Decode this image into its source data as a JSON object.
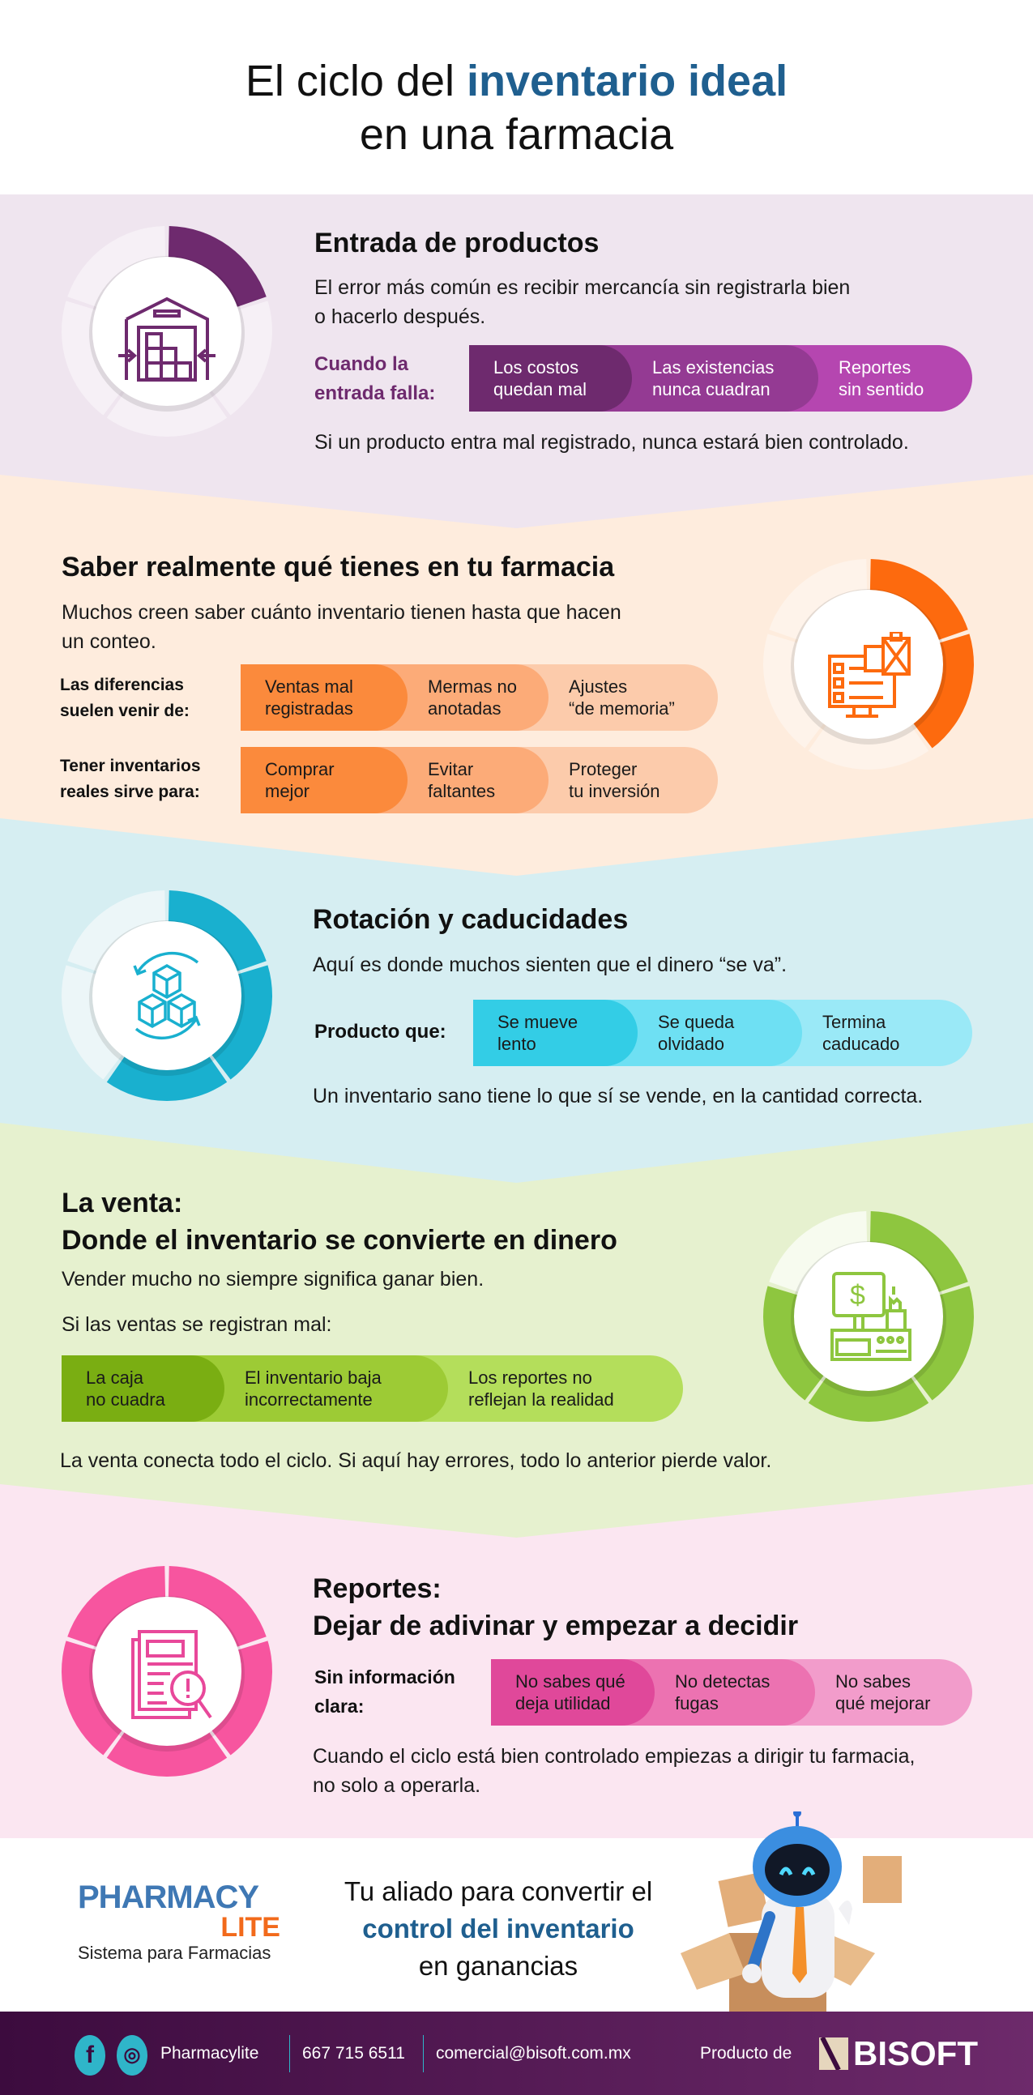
{
  "title": {
    "line1_pre": "El ciclo del ",
    "line1_highlight": "inventario ideal",
    "line2": "en una farmacia"
  },
  "sections": [
    {
      "heading": "Entrada de productos",
      "description": [
        "El error más común es recibir mercancía sin registrarla bien",
        "o hacerlo después."
      ],
      "row_label": [
        "Cuando la",
        "entrada falla:"
      ],
      "pill": [
        [
          "Los costos",
          "quedan mal"
        ],
        [
          "Las existencias",
          "nunca cuadran"
        ],
        [
          "Reportes",
          "sin sentido"
        ]
      ],
      "footer": "Si un producto entra mal registrado, nunca estará bien controlado.",
      "icon": "warehouse-icon",
      "ring": {
        "filled": 1,
        "total": 5,
        "color": "#6e2a6e",
        "light": "#f6f0f6"
      },
      "colors": {
        "bg": "#efe5ef",
        "seg": [
          "#6e2a6e",
          "#943a93",
          "#b546b0"
        ],
        "label": "#6e2a6e"
      }
    },
    {
      "heading": "Saber realmente qué tienes en tu farmacia",
      "description": [
        "Muchos creen saber cuánto inventario tienen hasta que hacen",
        "un conteo."
      ],
      "row_label": [
        "Las diferencias",
        "suelen venir de:"
      ],
      "pill": [
        [
          "Ventas mal",
          "registradas"
        ],
        [
          "Mermas no",
          "anotadas"
        ],
        [
          "Ajustes",
          "“de memoria”"
        ]
      ],
      "row2_label": [
        "Tener inventarios",
        "reales sirve para:"
      ],
      "pill2": [
        [
          "Comprar",
          "mejor"
        ],
        [
          "Evitar",
          "faltantes"
        ],
        [
          "Proteger",
          "tu inversión"
        ]
      ],
      "icon": "inventory-checklist-icon",
      "ring": {
        "filled": 2,
        "total": 5,
        "color": "#fd6a0e",
        "light": "#fef3ea"
      },
      "colors": {
        "bg": "#feecdd",
        "seg": [
          "#fb8a3c",
          "#fcab78",
          "#fccbab"
        ]
      }
    },
    {
      "heading": "Rotación y caducidades",
      "description": [
        "Aquí es donde muchos sienten que el dinero “se va”."
      ],
      "row_label": [
        "Producto que:"
      ],
      "pill": [
        [
          "Se mueve",
          "lento"
        ],
        [
          "Se queda",
          "olvidado"
        ],
        [
          "Termina",
          "caducado"
        ]
      ],
      "footer": "Un inventario sano tiene lo que sí se vende, en la cantidad correcta.",
      "icon": "boxes-rotation-icon",
      "ring": {
        "filled": 3,
        "total": 5,
        "color": "#19b0cf",
        "light": "#ecf6f8"
      },
      "colors": {
        "bg": "#d6eef2",
        "seg": [
          "#33cde6",
          "#6ee0f3",
          "#9ae9f7"
        ]
      }
    },
    {
      "heading": [
        "La venta:",
        "Donde el inventario se convierte en dinero"
      ],
      "description": [
        "Vender mucho no siempre significa ganar bien."
      ],
      "row_label": [
        "Si las ventas se registran mal:"
      ],
      "pill": [
        [
          "La caja",
          "no cuadra"
        ],
        [
          "El inventario baja",
          "incorrectamente"
        ],
        [
          "Los reportes no",
          "reflejan la realidad"
        ]
      ],
      "footer": "La venta conecta todo el ciclo. Si aquí hay errores, todo lo anterior pierde valor.",
      "icon": "cash-register-icon",
      "ring": {
        "filled": 4,
        "total": 5,
        "color": "#8ec63f",
        "light": "#f7fbef"
      },
      "colors": {
        "bg": "#e6f1cf",
        "seg": [
          "#7aae12",
          "#9dcb35",
          "#b4de5b"
        ]
      }
    },
    {
      "heading": [
        "Reportes:",
        "Dejar de adivinar y empezar a decidir"
      ],
      "row_label": [
        "Sin información",
        "clara:"
      ],
      "pill": [
        [
          "No sabes qué",
          "deja utilidad"
        ],
        [
          "No detectas",
          "fugas"
        ],
        [
          "No sabes",
          "qué mejorar"
        ]
      ],
      "footer": [
        "Cuando el ciclo está bien controlado empiezas a dirigir tu farmacia,",
        "no solo a operarla."
      ],
      "icon": "report-search-icon",
      "ring": {
        "filled": 5,
        "total": 5,
        "color": "#f7559f",
        "light": "#fbe6f1"
      },
      "colors": {
        "bg": "#fbe6f1",
        "seg": [
          "#e0489a",
          "#ec72b1",
          "#f29ccb"
        ]
      }
    }
  ],
  "promo": {
    "logo_top": "PHARMACY",
    "logo_bottom": "LITE",
    "logo_sub": "Sistema para Farmacias",
    "tagline": [
      "Tu aliado para convertir el",
      "control del inventario",
      "en ganancias"
    ],
    "accent": "#1f5f8f"
  },
  "footer": {
    "social_icons": [
      "facebook-icon",
      "instagram-icon"
    ],
    "handle": "Pharmacylite",
    "phone": "667 715 6511",
    "email": "comercial@bisoft.com.mx",
    "product_of": "Producto de",
    "brand": "BISOFT"
  }
}
